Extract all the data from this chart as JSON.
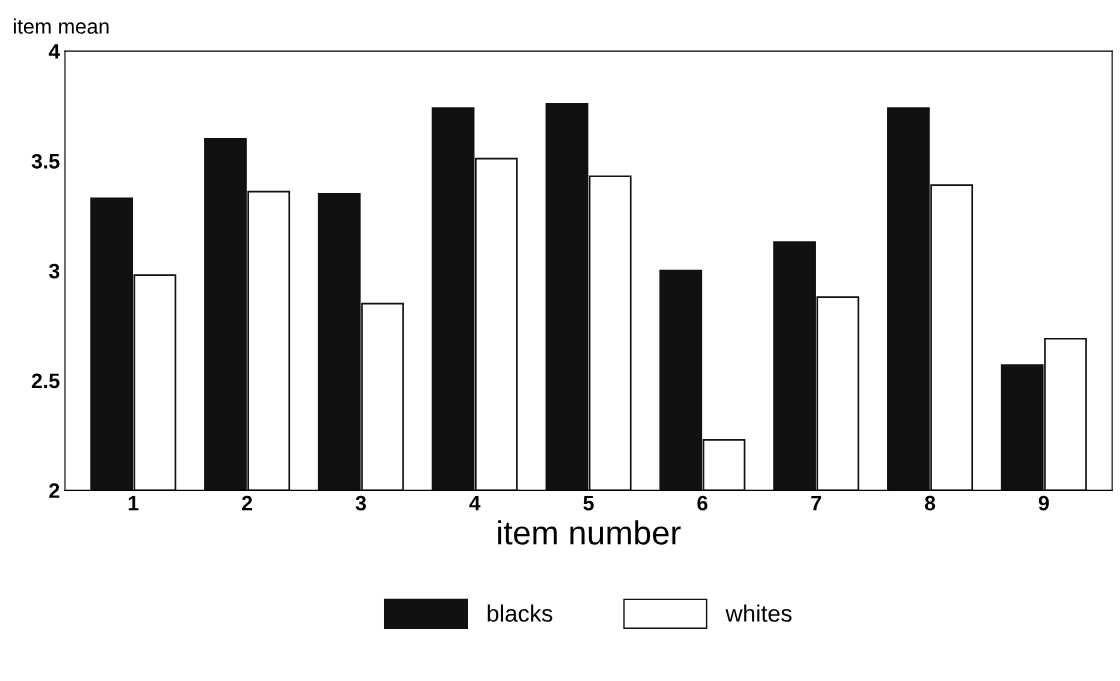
{
  "chart_data": {
    "type": "bar",
    "ylabel": "item mean",
    "xlabel": "item number",
    "categories": [
      "1",
      "2",
      "3",
      "4",
      "5",
      "6",
      "7",
      "8",
      "9"
    ],
    "series": [
      {
        "name": "blacks",
        "color": "#111111",
        "values": [
          3.33,
          3.6,
          3.35,
          3.74,
          3.76,
          3.0,
          3.13,
          3.74,
          2.57
        ]
      },
      {
        "name": "whites",
        "color": "#ffffff",
        "values": [
          2.98,
          3.36,
          2.85,
          3.51,
          3.43,
          2.23,
          2.88,
          3.39,
          2.69
        ]
      }
    ],
    "ylim": [
      2,
      4
    ],
    "yticks": [
      2,
      2.5,
      3,
      3.5,
      4
    ],
    "grid": false,
    "legend": "bottom"
  }
}
